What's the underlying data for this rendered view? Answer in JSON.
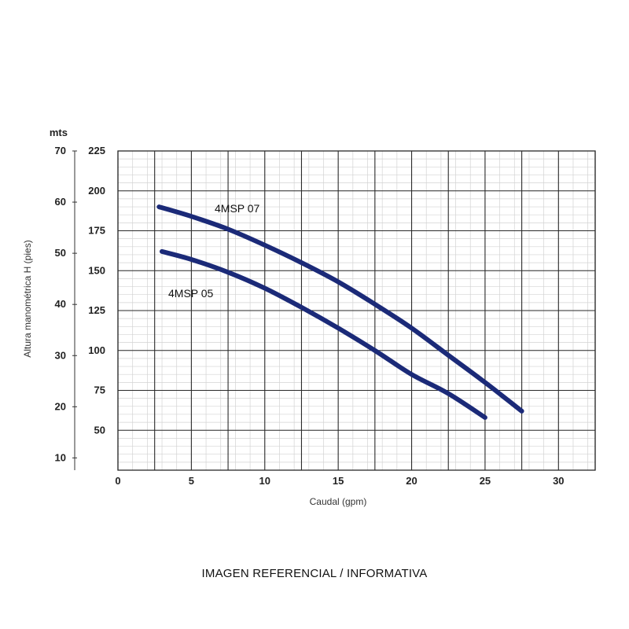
{
  "chart_data": {
    "type": "line",
    "title": "",
    "xlabel": "Caudal (gpm)",
    "ylabel": "Altura manométrica H (pies)",
    "y2_unit_label": "mts",
    "xlim": [
      0,
      32.5
    ],
    "ylim": [
      25,
      225
    ],
    "y2lim": [
      7.6,
      70
    ],
    "x_ticks": [
      0,
      5,
      10,
      15,
      20,
      25,
      30
    ],
    "y_ticks": [
      50,
      75,
      100,
      125,
      150,
      175,
      200,
      225
    ],
    "y2_ticks": [
      10,
      20,
      30,
      40,
      50,
      60,
      70
    ],
    "grid": true,
    "legend": "none",
    "line_color": "#1b2a78",
    "series": [
      {
        "name": "4MSP 07",
        "x": [
          2.8,
          5,
          7.5,
          10,
          12.5,
          15,
          17.5,
          20,
          22.5,
          25,
          27.5
        ],
        "y": [
          190,
          184,
          176,
          166,
          155,
          143,
          129,
          114,
          97,
          80,
          62
        ]
      },
      {
        "name": "4MSP 05",
        "x": [
          3,
          5,
          7.5,
          10,
          12.5,
          15,
          17.5,
          20,
          22.5,
          25
        ],
        "y": [
          162,
          157,
          149,
          139,
          127,
          114,
          100,
          85,
          73,
          58
        ]
      }
    ]
  },
  "footer": {
    "caption": "IMAGEN REFERENCIAL / INFORMATIVA"
  }
}
